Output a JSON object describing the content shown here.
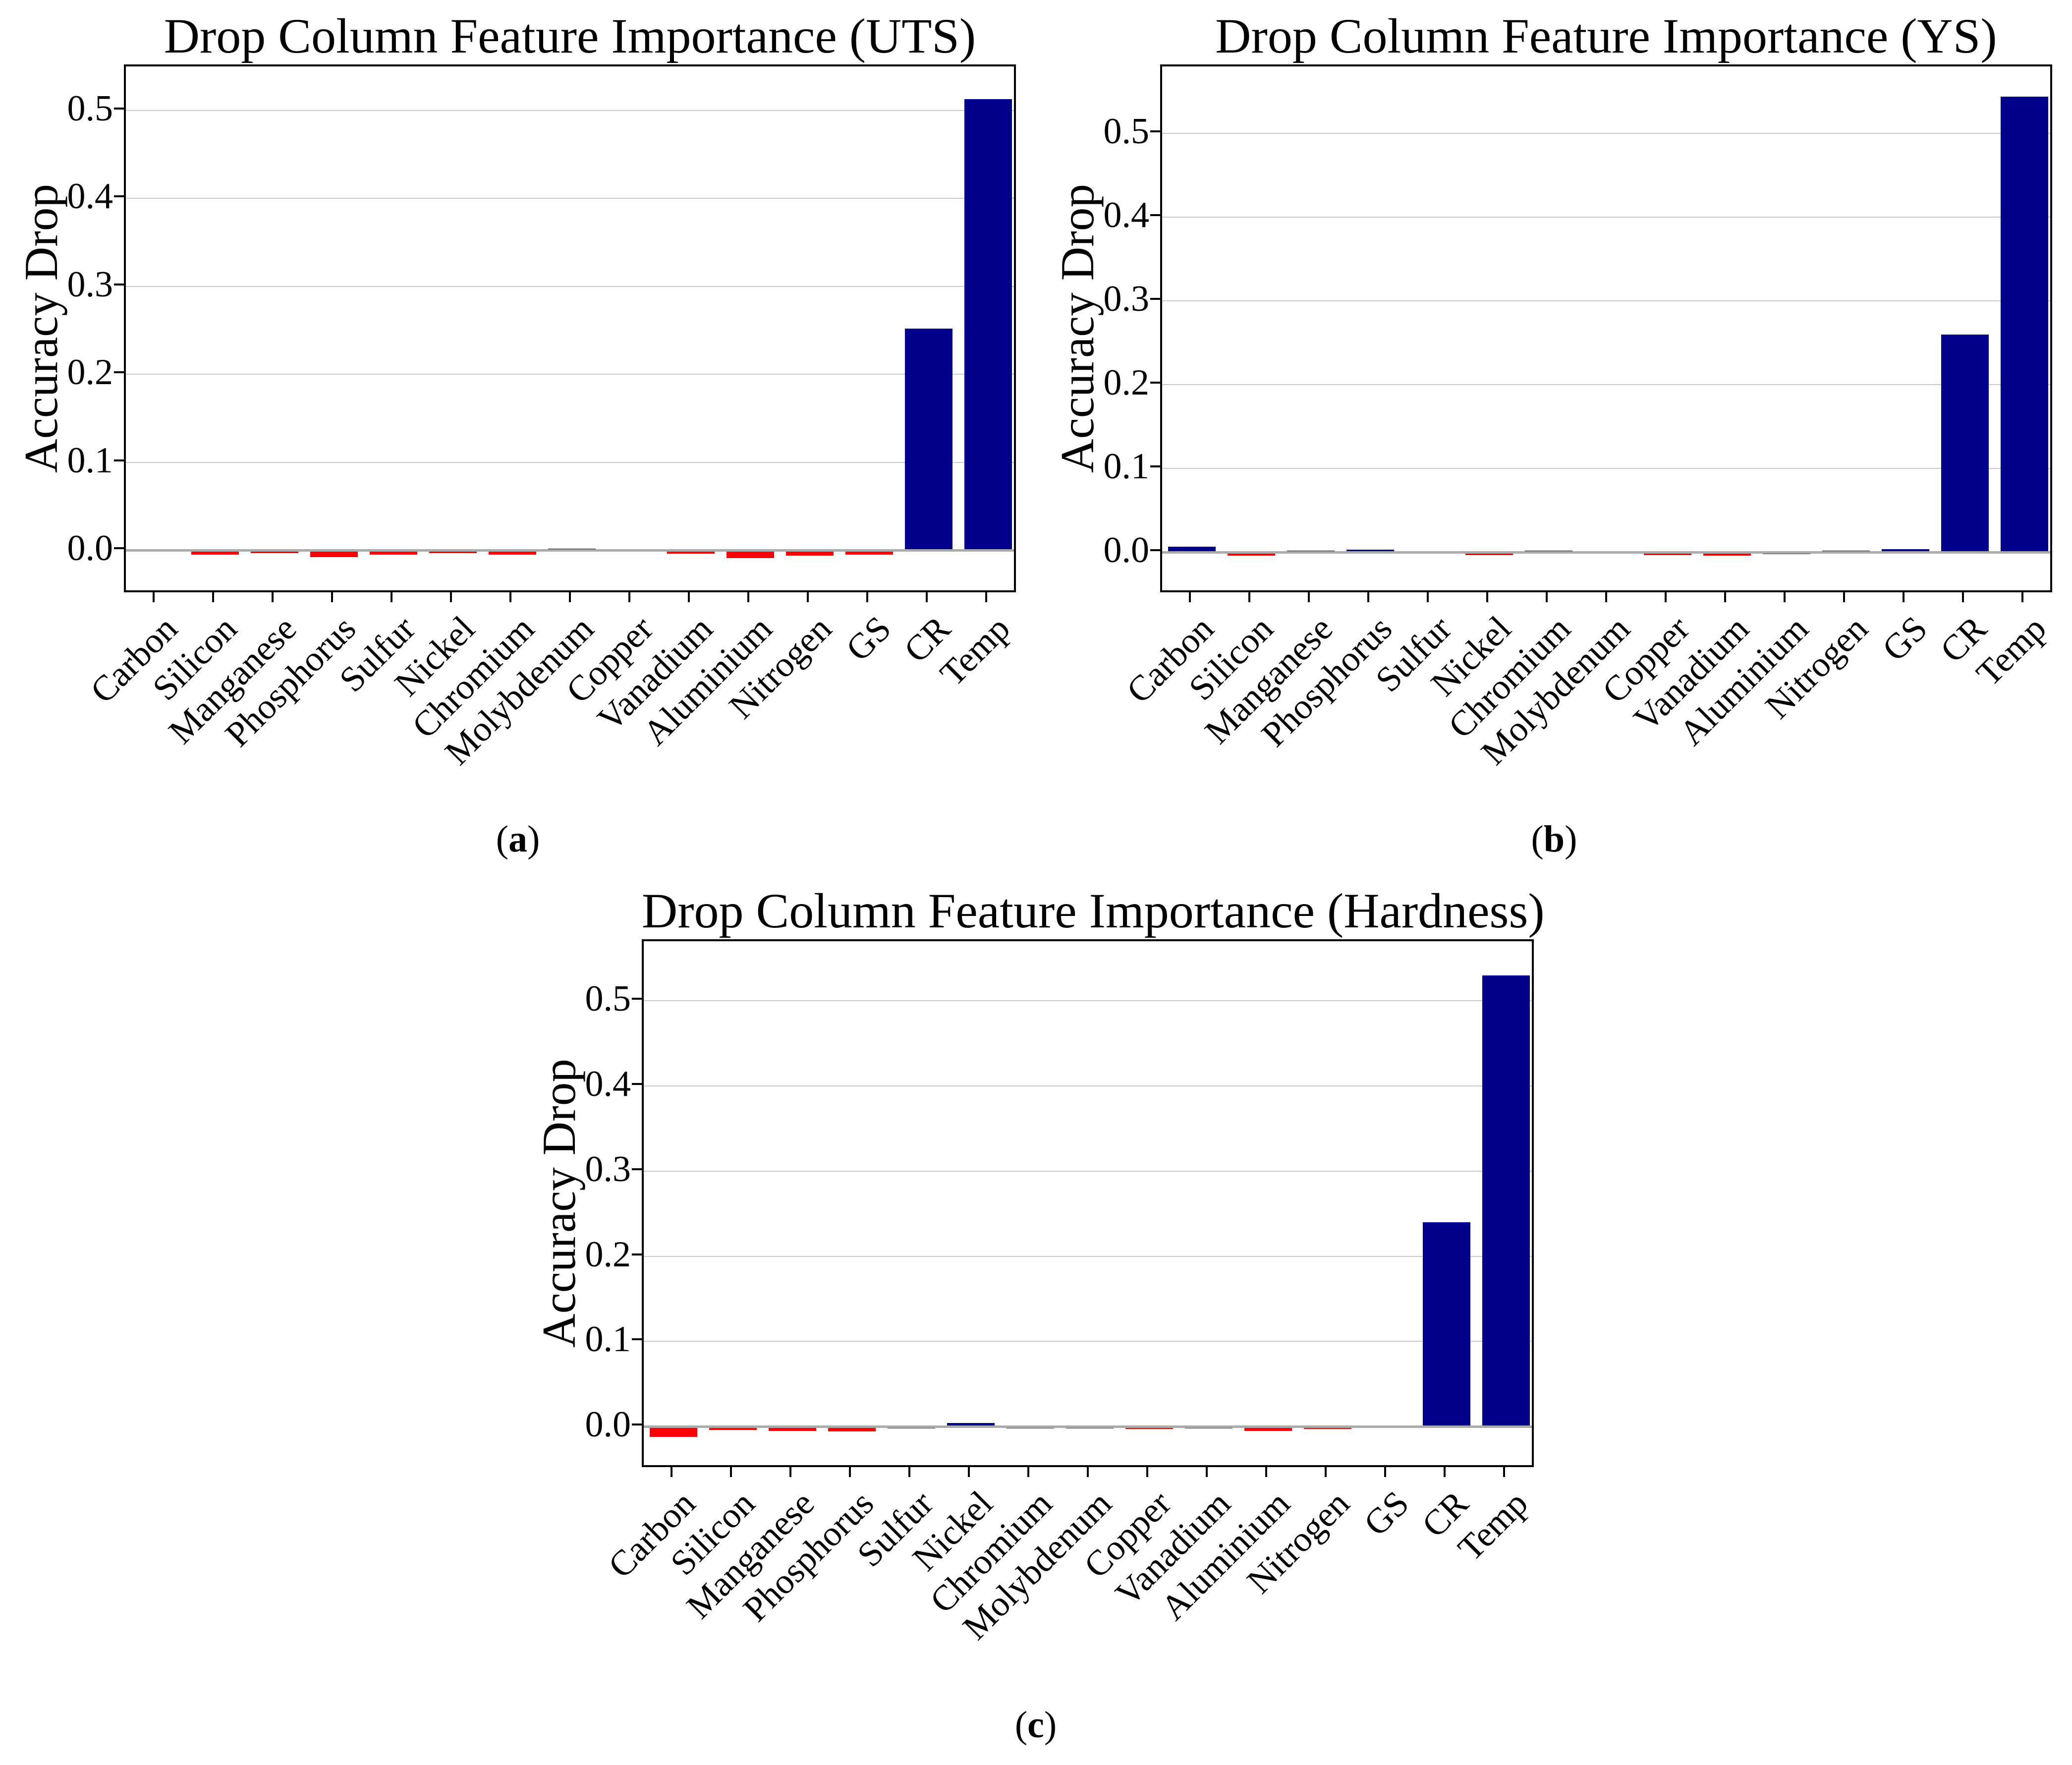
{
  "figure": {
    "background": "#ffffff",
    "description": "Three bar charts of drop-column feature importance"
  },
  "colors": {
    "bar_positive": "#00008B",
    "bar_negative": "#FF0000",
    "gridline": "#c9c9c9",
    "zero_line": "#ababab",
    "axis": "#000000",
    "text": "#000000"
  },
  "chart_data": [
    {
      "type": "bar",
      "title": "Drop Column Feature Importance (UTS)",
      "ylabel": "Accuracy Drop",
      "xlabel": "",
      "caption": [
        "(",
        "a",
        ")"
      ],
      "grid": true,
      "legend": "none",
      "categories": [
        "Carbon",
        "Silicon",
        "Manganese",
        "Phosphorus",
        "Sulfur",
        "Nickel",
        "Chromium",
        "Molybdenum",
        "Copper",
        "Vanadium",
        "Aluminium",
        "Nitrogen",
        "GS",
        "CR",
        "Temp"
      ],
      "values": [
        -0.001,
        -0.005,
        -0.003,
        -0.008,
        -0.005,
        -0.003,
        -0.005,
        0.002,
        0.0,
        -0.004,
        -0.009,
        -0.006,
        -0.005,
        0.252,
        0.513
      ],
      "yticks": [
        0.0,
        0.1,
        0.2,
        0.3,
        0.4,
        0.5
      ],
      "ytick_labels": [
        "0.0",
        "0.1",
        "0.2",
        "0.3",
        "0.4",
        "0.5"
      ],
      "ylim": [
        -0.05,
        0.55
      ]
    },
    {
      "type": "bar",
      "title": "Drop Column Feature Importance (YS)",
      "ylabel": "Accuracy Drop",
      "xlabel": "",
      "caption": [
        "(",
        "b",
        ")"
      ],
      "grid": true,
      "legend": "none",
      "categories": [
        "Carbon",
        "Silicon",
        "Manganese",
        "Phosphorus",
        "Sulfur",
        "Nickel",
        "Chromium",
        "Molybdenum",
        "Copper",
        "Vanadium",
        "Aluminium",
        "Nitrogen",
        "GS",
        "CR",
        "Temp"
      ],
      "values": [
        0.007,
        -0.004,
        0.001,
        0.003,
        -0.001,
        -0.003,
        0.001,
        0.0,
        -0.003,
        -0.004,
        -0.002,
        0.002,
        0.004,
        0.26,
        0.544
      ],
      "yticks": [
        0.0,
        0.1,
        0.2,
        0.3,
        0.4,
        0.5
      ],
      "ytick_labels": [
        "0.0",
        "0.1",
        "0.2",
        "0.3",
        "0.4",
        "0.5"
      ],
      "ylim": [
        -0.05,
        0.58
      ]
    },
    {
      "type": "bar",
      "title": "Drop Column Feature Importance (Hardness)",
      "ylabel": "Accuracy Drop",
      "xlabel": "",
      "caption": [
        "(",
        "c",
        ")"
      ],
      "grid": true,
      "legend": "none",
      "categories": [
        "Carbon",
        "Silicon",
        "Manganese",
        "Phosphorus",
        "Sulfur",
        "Nickel",
        "Chromium",
        "Molybdenum",
        "Copper",
        "Vanadium",
        "Aluminium",
        "Nitrogen",
        "GS",
        "CR",
        "Temp"
      ],
      "values": [
        -0.012,
        -0.004,
        -0.005,
        -0.006,
        -0.002,
        0.004,
        -0.002,
        -0.002,
        -0.003,
        -0.002,
        -0.005,
        -0.003,
        -0.001,
        0.24,
        0.53
      ],
      "yticks": [
        0.0,
        0.1,
        0.2,
        0.3,
        0.4,
        0.5
      ],
      "ytick_labels": [
        "0.0",
        "0.1",
        "0.2",
        "0.3",
        "0.4",
        "0.5"
      ],
      "ylim": [
        -0.05,
        0.57
      ]
    }
  ]
}
